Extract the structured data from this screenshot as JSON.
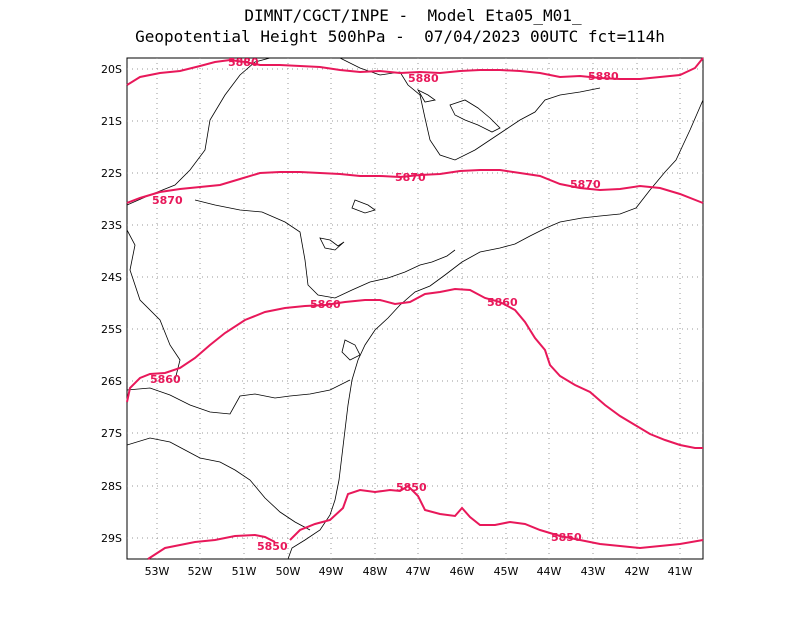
{
  "title": {
    "line1": "DIMNT/CGCT/INPE -  Model Eta05_M01_",
    "line2": "Geopotential Height 500hPa -  07/04/2023 00UTC fct=114h"
  },
  "colors": {
    "contour": "#e8185a",
    "coast": "#000000",
    "grid": "#9a9a9a"
  },
  "map": {
    "lat_ticks": [
      "20S",
      "21S",
      "22S",
      "23S",
      "24S",
      "25S",
      "26S",
      "27S",
      "28S",
      "29S"
    ],
    "lon_ticks": [
      "53W",
      "52W",
      "51W",
      "50W",
      "49W",
      "48W",
      "47W",
      "46W",
      "45W",
      "44W",
      "43W",
      "42W",
      "41W"
    ],
    "lat_range": [
      -29.4,
      -19.8
    ],
    "lon_range": [
      -53.6,
      -40.4
    ]
  },
  "contours": [
    {
      "value": "5880",
      "labels": [
        "5880",
        "5880",
        "5880"
      ]
    },
    {
      "value": "5870",
      "labels": [
        "5870",
        "5870",
        "5870"
      ]
    },
    {
      "value": "5860",
      "labels": [
        "5860",
        "5860"
      ]
    },
    {
      "value": "5850",
      "labels": [
        "5850",
        "5850",
        "5850"
      ]
    }
  ]
}
